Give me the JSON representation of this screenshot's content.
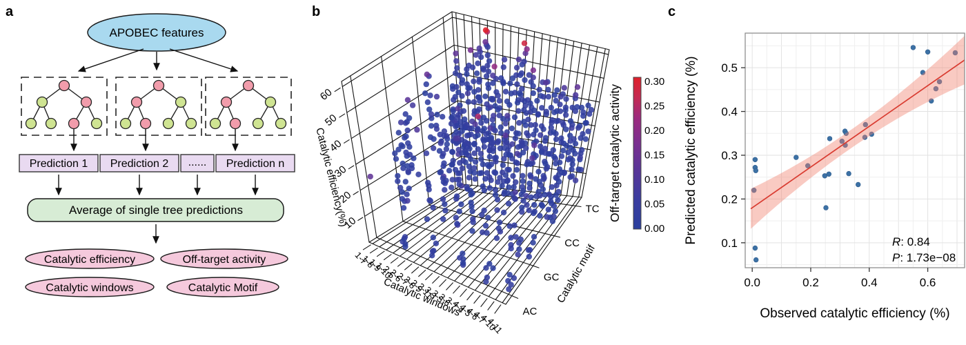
{
  "panel_letters": {
    "a": "a",
    "b": "b",
    "c": "c"
  },
  "panel_a": {
    "root_label": "APOBEC features",
    "predictions": [
      "Prediction 1",
      "Prediction 2",
      "......",
      "Prediction n"
    ],
    "average_label": "Average of single tree predictions",
    "outputs": [
      "Catalytic efficiency",
      "Off-target activity",
      "Catalytic windows",
      "Catalytic Motif"
    ],
    "colors": {
      "root_fill": "#a9d9ef",
      "node_pink": "#f19cab",
      "node_green": "#cfe492",
      "prediction_fill": "#e9daf1",
      "average_fill": "#d7ecd5",
      "output_fill": "#f5c9dc",
      "stroke": "#1a1a1a"
    },
    "trees": [
      {
        "children": [
          "green",
          "pink"
        ],
        "leaves": [
          "green",
          "green",
          "pink",
          "green"
        ],
        "arrow_leaf": 2
      },
      {
        "children": [
          "pink",
          "green"
        ],
        "leaves": [
          "green",
          "pink",
          "green",
          "green"
        ],
        "arrow_leaf": 1
      },
      {
        "children": [
          "pink",
          "green"
        ],
        "leaves": [
          "green",
          "pink",
          "green",
          "green"
        ],
        "arrow_leaf": 1
      }
    ]
  },
  "chart_data": [
    {
      "type": "scatter",
      "variant": "3d-scatter",
      "xlabel": "Catalytic windows",
      "ylabel": "Catalytic motif",
      "zlabel": "Catalytic efficiency(%)",
      "x_ticks": [
        "1-7",
        "1-8",
        "1-9",
        "1-10",
        "2-5",
        "2-6",
        "2-7",
        "2-8",
        "2-9",
        "2-11",
        "3-3",
        "3-5",
        "3-6",
        "3-7",
        "4-4",
        "4-5",
        "4-6",
        "4-7",
        "4-10",
        "4-11"
      ],
      "y_ticks": [
        "AC",
        "GC",
        "CC",
        "TC"
      ],
      "z_ticks": [
        10,
        20,
        30,
        40,
        50,
        60
      ],
      "zlim": [
        0,
        62
      ],
      "grid": true,
      "colorbar": {
        "label": "Off-target catalytic activity",
        "tick_labels": [
          "0.30",
          "0.25",
          "0.20",
          "0.15",
          "0.10",
          "0.05",
          "0.00"
        ],
        "range": [
          0.0,
          0.3
        ],
        "stops": [
          [
            0.0,
            "#2b3f9e"
          ],
          [
            0.06,
            "#3b3da0"
          ],
          [
            0.12,
            "#5b3598"
          ],
          [
            0.17,
            "#7b2f90"
          ],
          [
            0.22,
            "#9c2a7e"
          ],
          [
            0.26,
            "#c42a52"
          ],
          [
            0.3,
            "#e0202a"
          ]
        ]
      },
      "columns": [
        [
          0,
          3,
          12,
          38,
          0.05
        ],
        [
          1,
          3,
          8,
          50,
          0.12
        ],
        [
          2,
          3,
          15,
          45,
          0.04
        ],
        [
          3,
          3,
          18,
          52,
          0.15
        ],
        [
          4,
          3,
          20,
          55,
          0.1
        ],
        [
          5,
          3,
          15,
          62,
          0.3
        ],
        [
          6,
          3,
          12,
          48,
          0.18
        ],
        [
          7,
          3,
          20,
          50,
          0.08
        ],
        [
          8,
          3,
          15,
          45,
          0.05
        ],
        [
          9,
          3,
          18,
          52,
          0.12
        ],
        [
          10,
          3,
          15,
          60,
          0.28
        ],
        [
          11,
          3,
          20,
          50,
          0.15
        ],
        [
          12,
          3,
          15,
          45,
          0.08
        ],
        [
          13,
          3,
          18,
          48,
          0.12
        ],
        [
          14,
          3,
          12,
          44,
          0.06
        ],
        [
          15,
          3,
          15,
          46,
          0.1
        ],
        [
          16,
          3,
          10,
          42,
          0.05
        ],
        [
          17,
          3,
          12,
          45,
          0.08
        ],
        [
          18,
          3,
          10,
          40,
          0.05
        ],
        [
          19,
          3,
          12,
          42,
          0.06
        ],
        [
          1,
          2,
          25,
          50,
          0.12
        ],
        [
          2,
          2,
          10,
          35,
          0.05
        ],
        [
          3,
          2,
          8,
          30,
          0.04
        ],
        [
          4,
          2,
          12,
          38,
          0.06
        ],
        [
          5,
          2,
          10,
          40,
          0.08
        ],
        [
          6,
          2,
          8,
          35,
          0.05
        ],
        [
          7,
          2,
          15,
          38,
          0.28
        ],
        [
          8,
          2,
          10,
          32,
          0.05
        ],
        [
          9,
          2,
          12,
          36,
          0.1
        ],
        [
          10,
          2,
          8,
          30,
          0.04
        ],
        [
          11,
          2,
          10,
          34,
          0.12
        ],
        [
          12,
          2,
          8,
          28,
          0.05
        ],
        [
          13,
          2,
          10,
          32,
          0.06
        ],
        [
          14,
          2,
          6,
          26,
          0.04
        ],
        [
          15,
          2,
          8,
          30,
          0.12
        ],
        [
          16,
          2,
          6,
          24,
          0.04
        ],
        [
          17,
          2,
          8,
          28,
          0.05
        ],
        [
          18,
          2,
          5,
          22,
          0.04
        ],
        [
          19,
          2,
          6,
          25,
          0.05
        ],
        [
          0,
          1,
          5,
          28,
          0.05
        ],
        [
          1,
          1,
          10,
          40,
          0.08
        ],
        [
          2,
          1,
          20,
          48,
          0.14
        ],
        [
          4,
          1,
          6,
          20,
          0.04
        ],
        [
          6,
          1,
          8,
          24,
          0.05
        ],
        [
          8,
          1,
          5,
          18,
          0.04
        ],
        [
          10,
          1,
          6,
          22,
          0.05
        ],
        [
          12,
          1,
          5,
          16,
          0.04
        ],
        [
          14,
          1,
          6,
          18,
          0.04
        ],
        [
          16,
          1,
          4,
          14,
          0.04
        ],
        [
          17,
          1,
          3,
          10,
          0.03
        ],
        [
          19,
          1,
          4,
          12,
          0.04
        ],
        [
          4,
          0,
          2,
          6,
          0.03
        ],
        [
          8,
          0,
          2,
          9,
          0.03
        ],
        [
          12,
          0,
          3,
          7,
          0.03
        ],
        [
          16,
          0,
          2,
          10,
          0.04
        ],
        [
          19,
          0,
          2,
          8,
          0.03
        ]
      ],
      "singles": [
        [
          0,
          0,
          24,
          0.13
        ],
        [
          3,
          1,
          38,
          0.1
        ],
        [
          4,
          2,
          35,
          0.06
        ],
        [
          4,
          1,
          30,
          0.05
        ],
        [
          2,
          2,
          42,
          0.08
        ],
        [
          5,
          1,
          33,
          0.05
        ],
        [
          3,
          2,
          28,
          0.04
        ],
        [
          17,
          3,
          48,
          0.13
        ],
        [
          15,
          2,
          34,
          0.12
        ],
        [
          6,
          1,
          36,
          0.06
        ],
        [
          8,
          1,
          40,
          0.09
        ],
        [
          9,
          2,
          44,
          0.07
        ]
      ]
    },
    {
      "type": "scatter",
      "xlabel": "Observed catalytic efficiency (%)",
      "ylabel": "Predicted catalytic efficiency (%)",
      "x_tick_values": [
        0.0,
        0.2,
        0.4,
        0.6
      ],
      "x_tick_labels": [
        "0.0",
        "0.2",
        "0.4",
        "0.6"
      ],
      "y_tick_values": [
        0.1,
        0.2,
        0.3,
        0.4,
        0.5
      ],
      "y_tick_labels": [
        "0.1",
        "0.2",
        "0.3",
        "0.4",
        "0.5"
      ],
      "xlim": [
        -0.024,
        0.726
      ],
      "ylim": [
        0.043,
        0.579
      ],
      "grid": true,
      "points": [
        [
          0.01,
          0.29
        ],
        [
          0.01,
          0.272
        ],
        [
          0.012,
          0.265
        ],
        [
          0.006,
          0.22
        ],
        [
          0.01,
          0.088
        ],
        [
          0.013,
          0.061
        ],
        [
          0.15,
          0.295
        ],
        [
          0.19,
          0.276
        ],
        [
          0.248,
          0.253
        ],
        [
          0.262,
          0.257
        ],
        [
          0.252,
          0.18
        ],
        [
          0.265,
          0.338
        ],
        [
          0.307,
          0.332
        ],
        [
          0.318,
          0.323
        ],
        [
          0.317,
          0.355
        ],
        [
          0.321,
          0.35
        ],
        [
          0.33,
          0.258
        ],
        [
          0.362,
          0.233
        ],
        [
          0.387,
          0.37
        ],
        [
          0.385,
          0.341
        ],
        [
          0.408,
          0.348
        ],
        [
          0.55,
          0.546
        ],
        [
          0.6,
          0.536
        ],
        [
          0.583,
          0.489
        ],
        [
          0.64,
          0.468
        ],
        [
          0.628,
          0.452
        ],
        [
          0.612,
          0.424
        ],
        [
          0.694,
          0.534
        ]
      ],
      "regression": {
        "intercept": 0.18,
        "slope": 0.465,
        "x_start": -0.005,
        "x_end": 0.726
      },
      "band": {
        "halfwidth_min": 0.021,
        "curve": 0.22,
        "center_x": 0.33
      },
      "annotation": {
        "r_label": "R",
        "r_rest": ": 0.84",
        "p_label": "P",
        "p_rest": ": 1.73e−08"
      },
      "colors": {
        "point": "#3c71a5",
        "point_edge": "#2f5c8c",
        "line": "#d93b30",
        "band": "#f0806e"
      }
    }
  ]
}
